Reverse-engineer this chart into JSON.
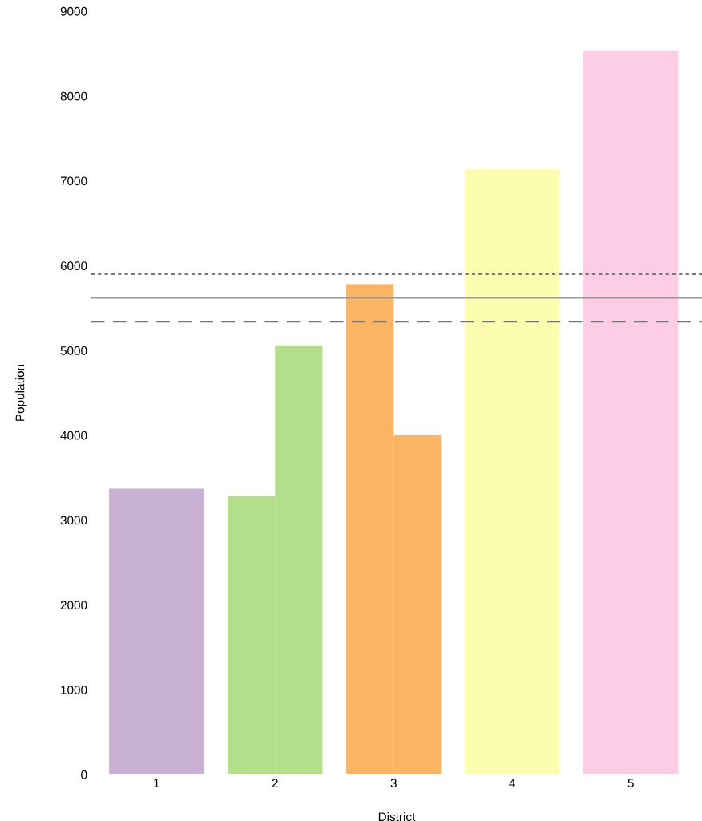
{
  "chart_data": {
    "type": "bar",
    "xlabel": "District",
    "ylabel": "Population",
    "x": [
      1,
      1.8,
      2.2,
      2.8,
      3.2,
      4,
      5
    ],
    "values": [
      3370,
      3280,
      5060,
      5780,
      4000,
      7140,
      8540
    ],
    "colors": [
      "#c9b1d4",
      "#b4df8a",
      "#b4df8a",
      "#fbb462",
      "#fbb462",
      "#fdfdb0",
      "#fccde5"
    ],
    "xlim": [
      0.45,
      5.6
    ],
    "xticks": [
      1,
      2,
      3,
      4,
      5
    ],
    "ylim": [
      0,
      9000
    ],
    "yticks": [
      0,
      1000,
      2000,
      3000,
      4000,
      5000,
      6000,
      7000,
      8000,
      9000
    ],
    "ref_lines": [
      {
        "axis": "y",
        "value": 5900,
        "color": "#777777",
        "line_style": "dotted"
      },
      {
        "axis": "y",
        "value": 5620,
        "color": "#999999",
        "line_style": "solid"
      },
      {
        "axis": "y",
        "value": 5340,
        "color": "#777777",
        "line_style": "dashed"
      }
    ],
    "grid": false,
    "legend": false
  }
}
